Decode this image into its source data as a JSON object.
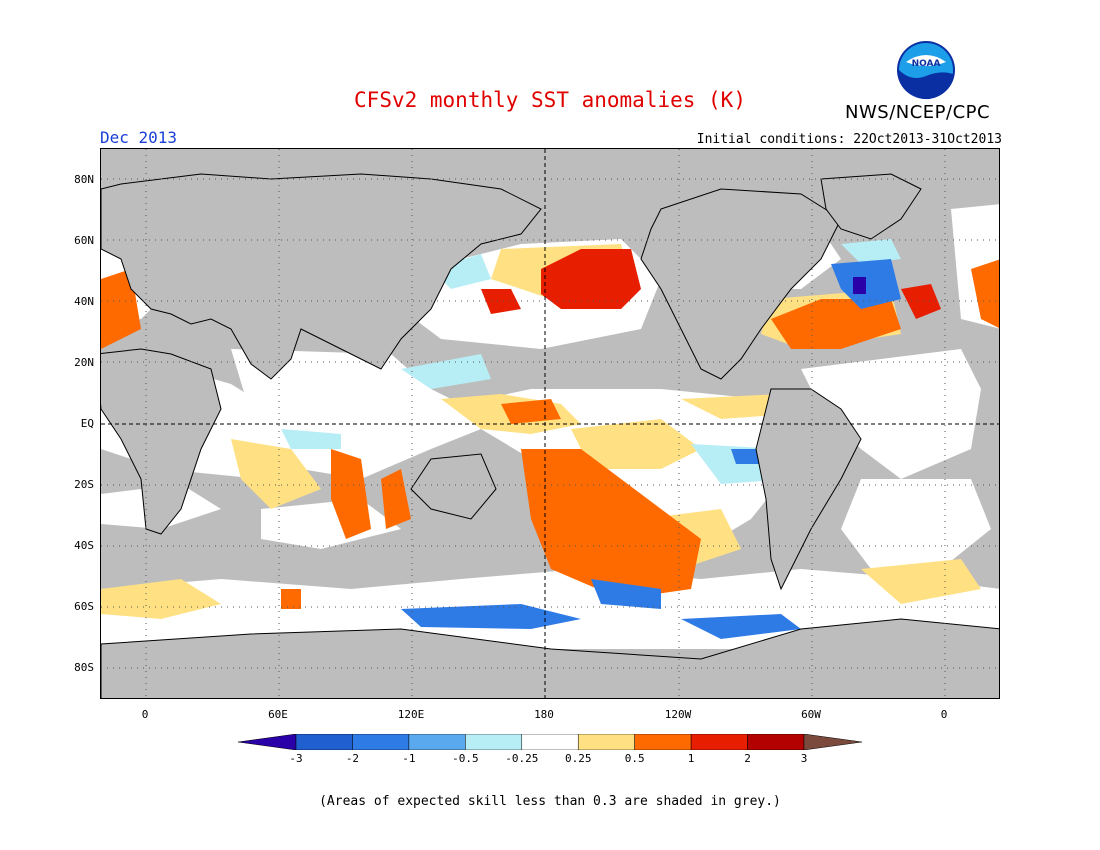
{
  "title": "CFSv2 monthly SST anomalies (K)",
  "agency": "NWS/NCEP/CPC",
  "logo_text": "NOAA",
  "valid_month": "Dec 2013",
  "initial_conditions": "Initial conditions: 22Oct2013-31Oct2013",
  "footnote": "(Areas of expected skill less than 0.3 are shaded in grey.)",
  "lat_labels": [
    "80N",
    "60N",
    "40N",
    "20N",
    "EQ",
    "20S",
    "40S",
    "60S",
    "80S"
  ],
  "lon_labels": [
    "0",
    "60E",
    "120E",
    "180",
    "120W",
    "60W",
    "0"
  ],
  "colorbar": {
    "labels": [
      "-3",
      "-2",
      "-1",
      "-0.5",
      "-0.25",
      "0.25",
      "0.5",
      "1",
      "2",
      "3"
    ],
    "colors": [
      "#2a00a8",
      "#1f5fd0",
      "#2f7be6",
      "#5aa8ee",
      "#b7eef6",
      "#ffffff",
      "#ffe183",
      "#ff6a00",
      "#e81e00",
      "#b30000",
      "#7b4a3c"
    ]
  },
  "colors": {
    "land": "#bdbdbd",
    "ocean_grey": "#bdbdbd",
    "title": "#e00000",
    "month": "#1a3fd6"
  }
}
